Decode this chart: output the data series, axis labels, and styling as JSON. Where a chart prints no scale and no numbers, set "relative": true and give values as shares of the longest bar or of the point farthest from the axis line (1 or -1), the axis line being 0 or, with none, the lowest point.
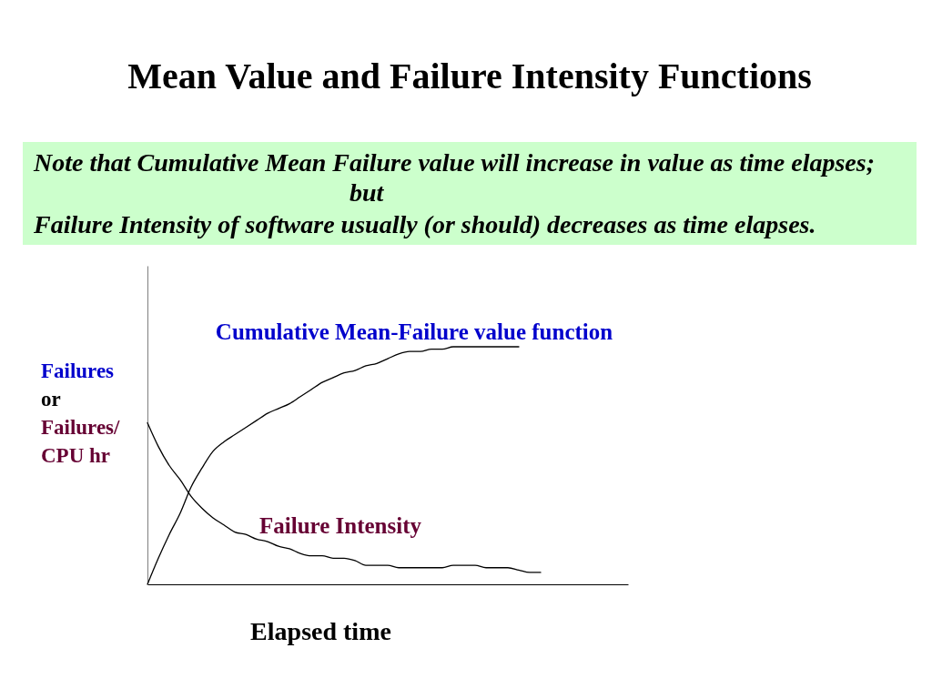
{
  "chart_data": {
    "type": "line",
    "title": "Mean Value and Failure Intensity Functions",
    "annotations": [
      "Note that Cumulative Mean Failure value will increase in value as time elapses;",
      "but",
      "Failure Intensity of software usually (or should) decreases as time elapses."
    ],
    "xlabel": "Elapsed time",
    "ylabel": "Failures\nor\nFailures/\nCPU hr",
    "relative": true,
    "categories": [
      null,
      null,
      null,
      null,
      null,
      null,
      null,
      null,
      null,
      null,
      null,
      null,
      null,
      null,
      null,
      null,
      null,
      null,
      null,
      null,
      null,
      null,
      null,
      null,
      null,
      null,
      null,
      null,
      null,
      null,
      null,
      null,
      null,
      null,
      null,
      null,
      null,
      null,
      null,
      null,
      null,
      null,
      null,
      null,
      null
    ],
    "series": [
      {
        "name": "Cumulative Mean-Failure value function",
        "color": "#000000",
        "values": [
          0,
          0.11,
          0.21,
          0.3,
          0.41,
          0.49,
          0.56,
          0.6,
          0.63,
          0.66,
          0.69,
          0.72,
          0.74,
          0.76,
          0.79,
          0.82,
          0.85,
          0.87,
          0.89,
          0.9,
          0.92,
          0.93,
          0.95,
          0.97,
          0.98,
          0.98,
          0.99,
          0.99,
          1,
          1,
          1,
          1,
          1,
          1,
          1,
          null,
          null,
          null,
          null,
          null,
          null,
          null,
          null,
          null,
          null
        ]
      },
      {
        "name": "Failure Intensity",
        "color": "#000000",
        "values": [
          0.68,
          0.58,
          0.5,
          0.44,
          0.37,
          0.32,
          0.28,
          0.25,
          0.22,
          0.21,
          0.19,
          0.18,
          0.16,
          0.15,
          0.13,
          0.12,
          0.12,
          0.11,
          0.11,
          0.1,
          0.08,
          0.08,
          0.08,
          0.07,
          0.07,
          0.07,
          0.07,
          0.07,
          0.08,
          0.08,
          0.08,
          0.07,
          0.07,
          0.07,
          0.06,
          0.05,
          0.05,
          null,
          null,
          null,
          null,
          null,
          null,
          null,
          null
        ]
      }
    ]
  }
}
